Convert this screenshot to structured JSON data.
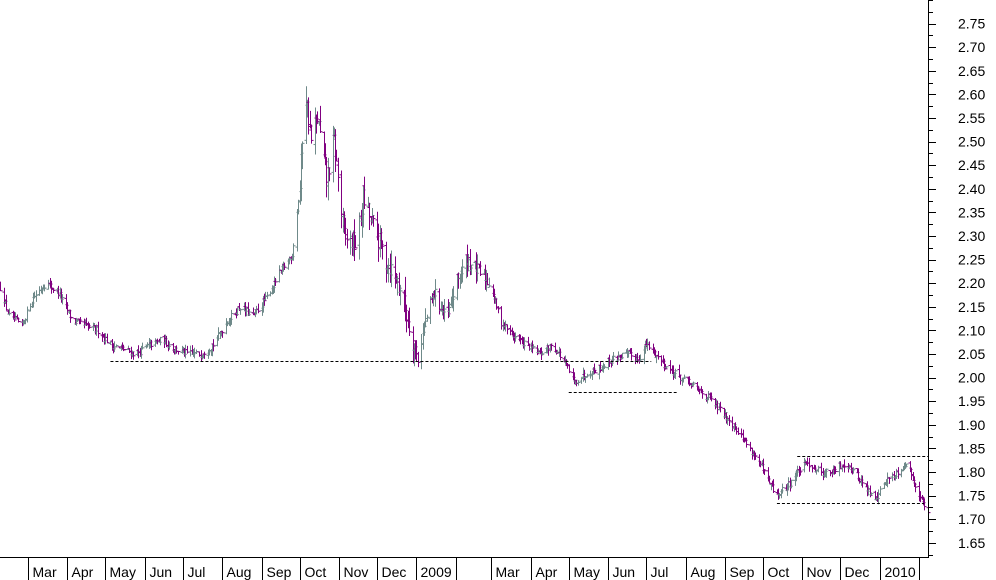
{
  "chart_data": {
    "type": "ohlc",
    "title": "",
    "xlabel": "",
    "ylabel": "",
    "grid": false,
    "ylim": [
      1.62,
      2.8
    ],
    "y_axis_position": "right",
    "y_ticks": [
      "1.65",
      "1.70",
      "1.75",
      "1.80",
      "1.85",
      "1.90",
      "1.95",
      "2.00",
      "2.05",
      "2.10",
      "2.15",
      "2.20",
      "2.25",
      "2.30",
      "2.35",
      "2.40",
      "2.45",
      "2.50",
      "2.55",
      "2.60",
      "2.65",
      "2.70",
      "2.75"
    ],
    "x_months": [
      {
        "label": "Mar",
        "date": "2008-03-01"
      },
      {
        "label": "Apr",
        "date": "2008-04-01"
      },
      {
        "label": "May",
        "date": "2008-05-01"
      },
      {
        "label": "Jun",
        "date": "2008-06-01"
      },
      {
        "label": "Jul",
        "date": "2008-07-01"
      },
      {
        "label": "Aug",
        "date": "2008-08-01"
      },
      {
        "label": "Sep",
        "date": "2008-09-01"
      },
      {
        "label": "Oct",
        "date": "2008-10-01"
      },
      {
        "label": "Nov",
        "date": "2008-11-01"
      },
      {
        "label": "Dec",
        "date": "2008-12-01"
      },
      {
        "label": "2009",
        "date": "2009-01-01"
      },
      {
        "label": "",
        "date": "2009-02-01"
      },
      {
        "label": "Mar",
        "date": "2009-03-01"
      },
      {
        "label": "Apr",
        "date": "2009-04-01"
      },
      {
        "label": "May",
        "date": "2009-05-01"
      },
      {
        "label": "Jun",
        "date": "2009-06-01"
      },
      {
        "label": "Jul",
        "date": "2009-07-01"
      },
      {
        "label": "Aug",
        "date": "2009-08-01"
      },
      {
        "label": "Sep",
        "date": "2009-09-01"
      },
      {
        "label": "Oct",
        "date": "2009-10-01"
      },
      {
        "label": "Nov",
        "date": "2009-11-01"
      },
      {
        "label": "Dec",
        "date": "2009-12-01"
      },
      {
        "label": "2010",
        "date": "2010-01-01"
      },
      {
        "label": "",
        "date": "2010-02-01"
      }
    ],
    "x_range": [
      "2008-02-08",
      "2010-02-08"
    ],
    "price_path": [
      [
        "2008-02-08",
        2.19
      ],
      [
        "2008-02-15",
        2.13
      ],
      [
        "2008-02-25",
        2.11
      ],
      [
        "2008-03-05",
        2.17
      ],
      [
        "2008-03-15",
        2.2
      ],
      [
        "2008-03-25",
        2.18
      ],
      [
        "2008-04-05",
        2.12
      ],
      [
        "2008-04-15",
        2.11
      ],
      [
        "2008-04-25",
        2.1
      ],
      [
        "2008-05-05",
        2.07
      ],
      [
        "2008-05-15",
        2.06
      ],
      [
        "2008-05-25",
        2.05
      ],
      [
        "2008-06-05",
        2.07
      ],
      [
        "2008-06-15",
        2.08
      ],
      [
        "2008-06-25",
        2.06
      ],
      [
        "2008-07-05",
        2.05
      ],
      [
        "2008-07-15",
        2.05
      ],
      [
        "2008-07-25",
        2.07
      ],
      [
        "2008-08-05",
        2.12
      ],
      [
        "2008-08-15",
        2.15
      ],
      [
        "2008-08-25",
        2.13
      ],
      [
        "2008-09-05",
        2.17
      ],
      [
        "2008-09-15",
        2.22
      ],
      [
        "2008-09-25",
        2.26
      ],
      [
        "2008-10-01",
        2.4
      ],
      [
        "2008-10-05",
        2.62
      ],
      [
        "2008-10-10",
        2.5
      ],
      [
        "2008-10-15",
        2.55
      ],
      [
        "2008-10-22",
        2.42
      ],
      [
        "2008-10-28",
        2.5
      ],
      [
        "2008-11-05",
        2.3
      ],
      [
        "2008-11-15",
        2.28
      ],
      [
        "2008-11-20",
        2.38
      ],
      [
        "2008-11-28",
        2.32
      ],
      [
        "2008-12-08",
        2.25
      ],
      [
        "2008-12-18",
        2.2
      ],
      [
        "2008-12-28",
        2.09
      ],
      [
        "2009-01-02",
        2.04
      ],
      [
        "2009-01-08",
        2.12
      ],
      [
        "2009-01-15",
        2.18
      ],
      [
        "2009-01-25",
        2.12
      ],
      [
        "2009-02-01",
        2.2
      ],
      [
        "2009-02-10",
        2.25
      ],
      [
        "2009-02-20",
        2.22
      ],
      [
        "2009-02-28",
        2.2
      ],
      [
        "2009-03-08",
        2.12
      ],
      [
        "2009-03-18",
        2.09
      ],
      [
        "2009-03-28",
        2.07
      ],
      [
        "2009-04-08",
        2.05
      ],
      [
        "2009-04-18",
        2.07
      ],
      [
        "2009-04-28",
        2.03
      ],
      [
        "2009-05-05",
        1.99
      ],
      [
        "2009-05-15",
        2.01
      ],
      [
        "2009-05-25",
        2.02
      ],
      [
        "2009-06-05",
        2.04
      ],
      [
        "2009-06-15",
        2.05
      ],
      [
        "2009-06-25",
        2.04
      ],
      [
        "2009-07-01",
        2.07
      ],
      [
        "2009-07-08",
        2.05
      ],
      [
        "2009-07-18",
        2.02
      ],
      [
        "2009-07-28",
        2.0
      ],
      [
        "2009-08-08",
        1.98
      ],
      [
        "2009-08-18",
        1.96
      ],
      [
        "2009-08-28",
        1.93
      ],
      [
        "2009-09-08",
        1.9
      ],
      [
        "2009-09-18",
        1.86
      ],
      [
        "2009-09-28",
        1.82
      ],
      [
        "2009-10-05",
        1.78
      ],
      [
        "2009-10-12",
        1.75
      ],
      [
        "2009-10-20",
        1.77
      ],
      [
        "2009-10-28",
        1.8
      ],
      [
        "2009-11-05",
        1.82
      ],
      [
        "2009-11-15",
        1.8
      ],
      [
        "2009-11-25",
        1.8
      ],
      [
        "2009-12-05",
        1.82
      ],
      [
        "2009-12-12",
        1.8
      ],
      [
        "2009-12-20",
        1.77
      ],
      [
        "2009-12-28",
        1.74
      ],
      [
        "2010-01-05",
        1.78
      ],
      [
        "2010-01-15",
        1.8
      ],
      [
        "2010-01-22",
        1.82
      ],
      [
        "2010-01-28",
        1.78
      ],
      [
        "2010-02-03",
        1.74
      ],
      [
        "2010-02-08",
        1.71
      ]
    ],
    "reference_lines": [
      {
        "y": 2.035,
        "x_start": "2008-05-05",
        "x_end": "2009-07-05"
      },
      {
        "y": 1.97,
        "x_start": "2009-05-01",
        "x_end": "2009-07-25"
      },
      {
        "y": 1.735,
        "x_start": "2009-10-12",
        "x_end": "2010-02-05"
      },
      {
        "y": 1.835,
        "x_start": "2009-10-28",
        "x_end": "2010-02-08"
      }
    ],
    "colors": {
      "bar_down": "#800080",
      "bar_up": "#6f8a8a",
      "reference_line": "#000000",
      "axis": "#000000",
      "background": "#ffffff"
    }
  }
}
